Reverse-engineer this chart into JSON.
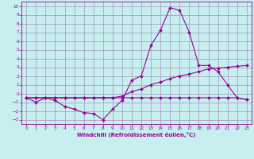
{
  "xlabel": "Windchill (Refroidissement éolien,°C)",
  "background_color": "#c8eef0",
  "grid_color": "#9999bb",
  "line_color": "#990099",
  "x_range": [
    -0.5,
    23.5
  ],
  "y_range": [
    -3.5,
    10.5
  ],
  "x_ticks": [
    0,
    1,
    2,
    3,
    4,
    5,
    6,
    7,
    8,
    9,
    10,
    11,
    12,
    13,
    14,
    15,
    16,
    17,
    18,
    19,
    20,
    21,
    22,
    23
  ],
  "y_ticks": [
    -3,
    -2,
    -1,
    0,
    1,
    2,
    3,
    4,
    5,
    6,
    7,
    8,
    9,
    10
  ],
  "line1_x": [
    0,
    1,
    2,
    3,
    4,
    5,
    6,
    7,
    8,
    9,
    10,
    11,
    12,
    13,
    14,
    15,
    16,
    17,
    18,
    19,
    20,
    21,
    22,
    23
  ],
  "line1_y": [
    -0.5,
    -1.0,
    -0.5,
    -0.8,
    -1.5,
    -1.8,
    -2.2,
    -2.3,
    -3.0,
    -1.8,
    -0.8,
    1.5,
    2.0,
    5.5,
    7.2,
    9.8,
    9.5,
    7.0,
    3.2,
    3.2,
    2.5,
    1.0,
    -0.5,
    -0.7
  ],
  "line2_x": [
    0,
    1,
    2,
    3,
    4,
    5,
    6,
    7,
    8,
    9,
    10,
    11,
    12,
    13,
    14,
    15,
    16,
    17,
    18,
    19,
    20,
    21,
    22,
    23
  ],
  "line2_y": [
    -0.5,
    -0.5,
    -0.5,
    -0.5,
    -0.5,
    -0.5,
    -0.5,
    -0.5,
    -0.5,
    -0.5,
    -0.3,
    0.2,
    0.5,
    1.0,
    1.3,
    1.7,
    2.0,
    2.2,
    2.5,
    2.8,
    2.9,
    3.0,
    3.1,
    3.2
  ],
  "line3_x": [
    0,
    1,
    2,
    3,
    4,
    5,
    6,
    7,
    8,
    9,
    10,
    11,
    12,
    13,
    14,
    15,
    16,
    17,
    18,
    19,
    20,
    21,
    22,
    23
  ],
  "line3_y": [
    -0.5,
    -0.5,
    -0.5,
    -0.5,
    -0.5,
    -0.5,
    -0.5,
    -0.5,
    -0.5,
    -0.5,
    -0.5,
    -0.5,
    -0.5,
    -0.5,
    -0.5,
    -0.5,
    -0.5,
    -0.5,
    -0.5,
    -0.5,
    -0.5,
    -0.5,
    -0.5,
    -0.7
  ]
}
